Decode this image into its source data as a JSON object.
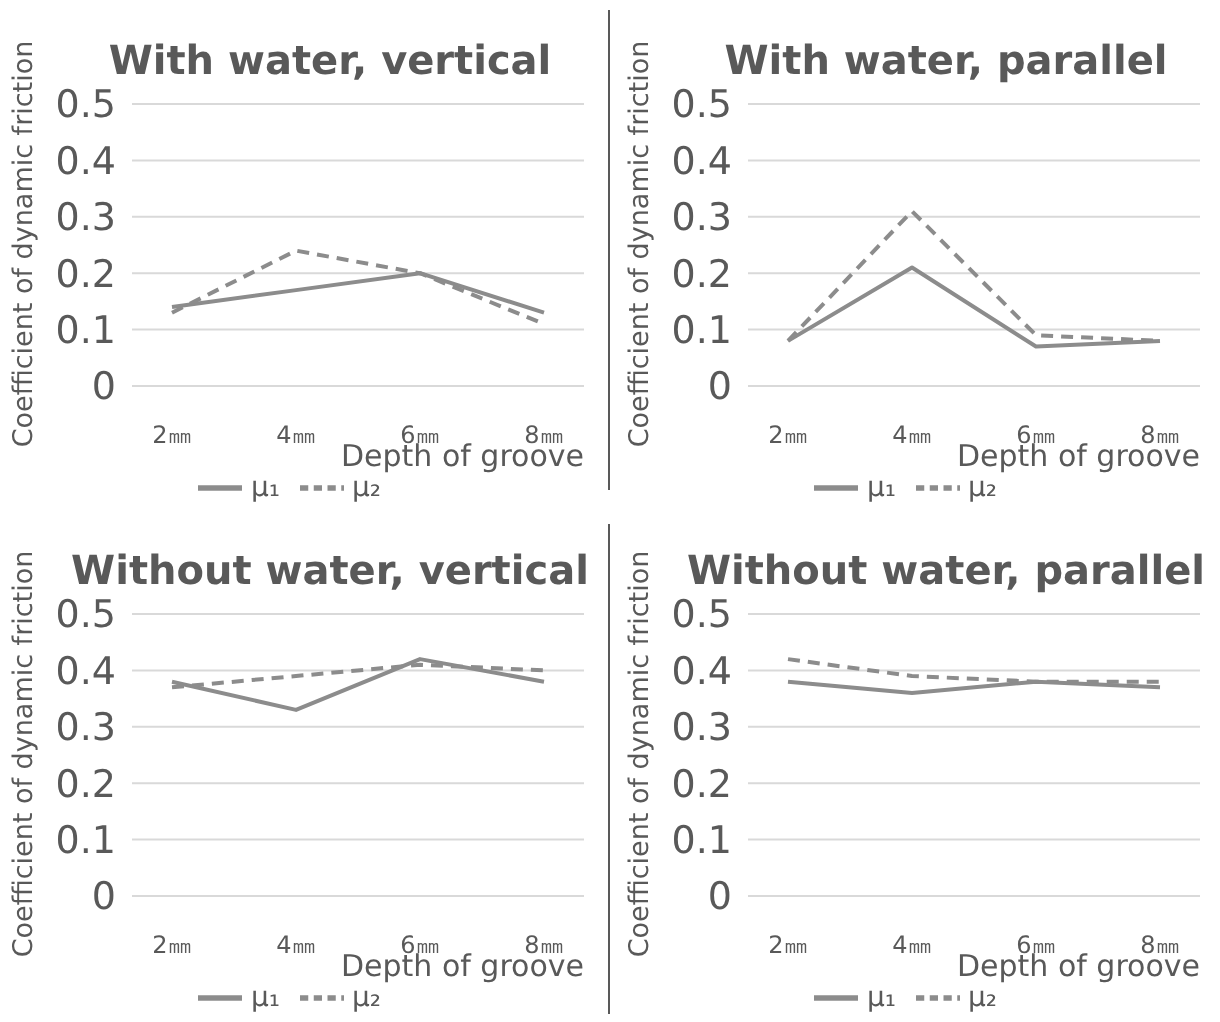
{
  "chart_data": [
    {
      "type": "line",
      "title": "With water, vertical",
      "xlabel": "Depth of groove",
      "ylabel": "Coefficient of dynamic friction",
      "categories": [
        "2㎜",
        "4㎜",
        "6㎜",
        "8㎜"
      ],
      "series": [
        {
          "name": "μ₁",
          "color": "#8c8c8c",
          "line_style": "solid",
          "values": [
            0.14,
            0.17,
            0.2,
            0.13
          ]
        },
        {
          "name": "μ₂",
          "color": "#8c8c8c",
          "line_style": "dashed",
          "values": [
            0.13,
            0.24,
            0.2,
            0.11
          ]
        }
      ],
      "ylim": [
        0,
        0.5
      ],
      "yticks": [
        0,
        0.1,
        0.2,
        0.3,
        0.4,
        0.5
      ],
      "grid": "y",
      "legend": "bottom",
      "marker": "none"
    },
    {
      "type": "line",
      "title": "With water, parallel",
      "xlabel": "Depth of groove",
      "ylabel": "Coefficient of dynamic friction",
      "categories": [
        "2㎜",
        "4㎜",
        "6㎜",
        "8㎜"
      ],
      "series": [
        {
          "name": "μ₁",
          "color": "#8c8c8c",
          "line_style": "solid",
          "values": [
            0.08,
            0.21,
            0.07,
            0.08
          ]
        },
        {
          "name": "μ₂",
          "color": "#8c8c8c",
          "line_style": "dashed",
          "values": [
            0.08,
            0.31,
            0.09,
            0.08
          ]
        }
      ],
      "ylim": [
        0,
        0.5
      ],
      "yticks": [
        0,
        0.1,
        0.2,
        0.3,
        0.4,
        0.5
      ],
      "grid": "y",
      "legend": "bottom",
      "marker": "none"
    },
    {
      "type": "line",
      "title": "Without water, vertical",
      "xlabel": "Depth of groove",
      "ylabel": "Coefficient of dynamic friction",
      "categories": [
        "2㎜",
        "4㎜",
        "6㎜",
        "8㎜"
      ],
      "series": [
        {
          "name": "μ₁",
          "color": "#8c8c8c",
          "line_style": "solid",
          "values": [
            0.38,
            0.33,
            0.42,
            0.38
          ]
        },
        {
          "name": "μ₂",
          "color": "#8c8c8c",
          "line_style": "dashed",
          "values": [
            0.37,
            0.39,
            0.41,
            0.4
          ]
        }
      ],
      "ylim": [
        0,
        0.5
      ],
      "yticks": [
        0,
        0.1,
        0.2,
        0.3,
        0.4,
        0.5
      ],
      "grid": "y",
      "legend": "bottom",
      "marker": "none"
    },
    {
      "type": "line",
      "title": "Without water, parallel",
      "xlabel": "Depth of groove",
      "ylabel": "Coefficient of dynamic friction",
      "categories": [
        "2㎜",
        "4㎜",
        "6㎜",
        "8㎜"
      ],
      "series": [
        {
          "name": "μ₁",
          "color": "#8c8c8c",
          "line_style": "solid",
          "values": [
            0.38,
            0.36,
            0.38,
            0.37
          ]
        },
        {
          "name": "μ₂",
          "color": "#8c8c8c",
          "line_style": "dashed",
          "values": [
            0.42,
            0.39,
            0.38,
            0.38
          ]
        }
      ],
      "ylim": [
        0,
        0.5
      ],
      "yticks": [
        0,
        0.1,
        0.2,
        0.3,
        0.4,
        0.5
      ],
      "grid": "y",
      "legend": "bottom",
      "marker": "none"
    }
  ]
}
